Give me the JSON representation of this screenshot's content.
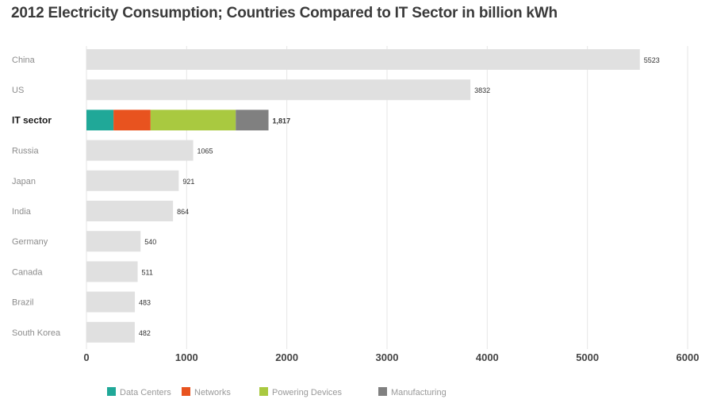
{
  "chart_data": {
    "type": "bar",
    "orientation": "horizontal",
    "title": "2012 Electricity Consumption; Countries Compared to IT Sector in billion kWh",
    "xlabel": "",
    "ylabel": "",
    "xlim": [
      0,
      6000
    ],
    "x_ticks": [
      "0",
      "1000",
      "2000",
      "3000",
      "4000",
      "5000",
      "6000"
    ],
    "grid": "vertical",
    "legend_position": "bottom",
    "categories": [
      "China",
      "US",
      "IT sector",
      "Russia",
      "Japan",
      "India",
      "Germany",
      "Canada",
      "Brazil",
      "South Korea"
    ],
    "highlight_category": "IT sector",
    "values": [
      5523,
      3832,
      1817,
      1065,
      921,
      864,
      540,
      511,
      483,
      482
    ],
    "value_labels": [
      "5523",
      "3832",
      "1,817",
      "1065",
      "921",
      "864",
      "540",
      "511",
      "483",
      "482"
    ],
    "it_sector_breakdown": [
      {
        "name": "Data Centers",
        "value": 270,
        "color": "#20a898"
      },
      {
        "name": "Networks",
        "value": 370,
        "color": "#e8531f"
      },
      {
        "name": "Powering Devices",
        "value": 850,
        "color": "#a9c940"
      },
      {
        "name": "Manufacturing",
        "value": 327,
        "color": "#808080"
      }
    ],
    "colors": {
      "bar": "#e0e0e0",
      "grid": "#e6e6e6",
      "label": "#8c8c8c",
      "highlight_label": "#1a1a1a"
    }
  }
}
